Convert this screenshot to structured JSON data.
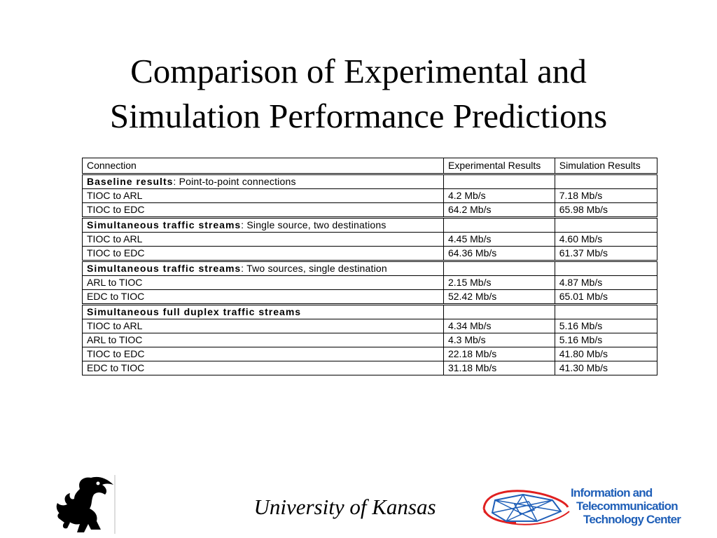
{
  "title": {
    "line1": "Comparison of Experimental and",
    "line2": "Simulation Performance Predictions"
  },
  "table": {
    "headers": [
      "Connection",
      "Experimental Results",
      "Simulation Results"
    ],
    "groups": [
      {
        "heading_bold": "Baseline results",
        "heading_rest": ": Point-to-point connections",
        "rows": [
          [
            "TIOC to ARL",
            "4.2 Mb/s",
            "7.18 Mb/s"
          ],
          [
            "TIOC to EDC",
            "64.2 Mb/s",
            "65.98 Mb/s"
          ]
        ]
      },
      {
        "heading_bold": "Simultaneous traffic streams",
        "heading_rest": ": Single source, two destinations",
        "rows": [
          [
            "TIOC to ARL",
            "4.45 Mb/s",
            "4.60 Mb/s"
          ],
          [
            "TIOC to EDC",
            "64.36 Mb/s",
            "61.37 Mb/s"
          ]
        ]
      },
      {
        "heading_bold": "Simultaneous traffic streams",
        "heading_rest": ": Two sources, single destination",
        "rows": [
          [
            "ARL to TIOC",
            "2.15 Mb/s",
            "4.87 Mb/s"
          ],
          [
            "EDC to TIOC",
            "52.42 Mb/s",
            "65.01 Mb/s"
          ]
        ]
      },
      {
        "heading_bold": "Simultaneous full duplex traffic streams",
        "heading_rest": "",
        "rows": [
          [
            "TIOC to ARL",
            "4.34 Mb/s",
            "5.16 Mb/s"
          ],
          [
            "ARL to TIOC",
            "4.3 Mb/s",
            "5.16 Mb/s"
          ],
          [
            "TIOC to EDC",
            "22.18 Mb/s",
            "41.80 Mb/s"
          ],
          [
            "EDC to TIOC",
            "31.18 Mb/s",
            "41.30 Mb/s"
          ]
        ]
      }
    ]
  },
  "footer": {
    "university": "University of Kansas",
    "ittc_lines": [
      "Information and",
      "Telecommunication",
      "Technology Center"
    ]
  },
  "colors": {
    "ittc_blue": "#1f5fb8",
    "ittc_red": "#e02020"
  },
  "icons": {
    "left_logo": "jayhawk-logo-icon",
    "right_logo": "ittc-network-logo-icon"
  }
}
